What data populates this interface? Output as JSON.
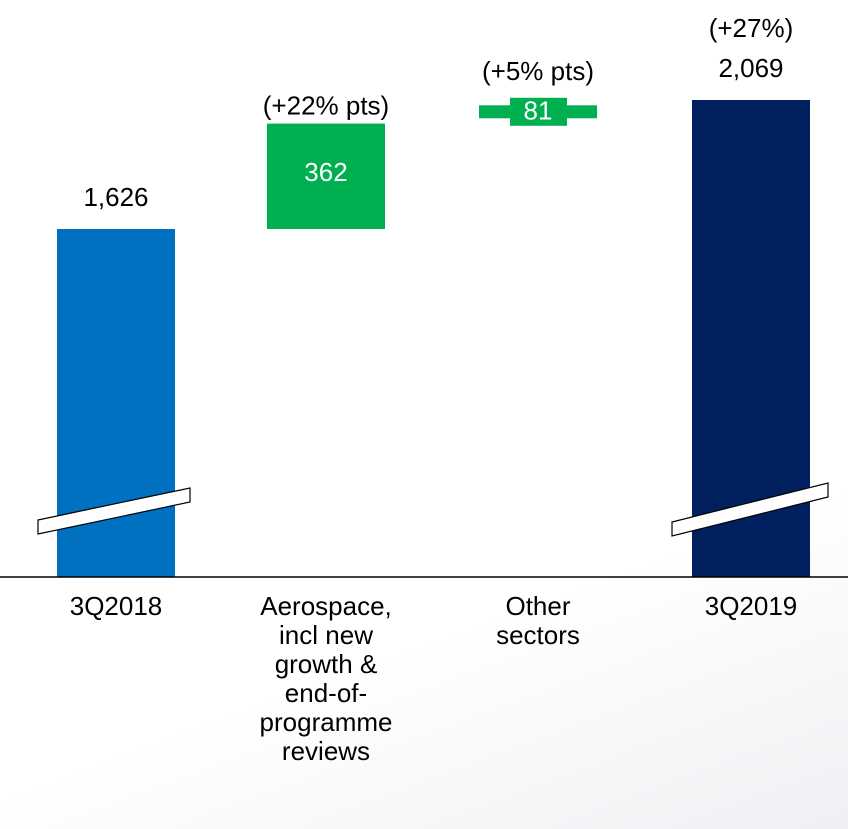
{
  "chart_data": {
    "type": "waterfall",
    "categories": [
      "3Q2018",
      "Aerospace, incl new growth & end-of-programme reviews",
      "Other sectors",
      "3Q2019"
    ],
    "measures": [
      "absolute",
      "relative",
      "relative",
      "total"
    ],
    "values": [
      1626,
      362,
      81,
      2069
    ],
    "value_labels": [
      "1,626",
      "362",
      "81",
      "2,069"
    ],
    "annotations": [
      null,
      "(+22% pts)",
      "(+5% pts)",
      "(+27%)"
    ],
    "colors": [
      "#0070c0",
      "#00b050",
      "#00b050",
      "#002060"
    ],
    "axis_break": true
  }
}
